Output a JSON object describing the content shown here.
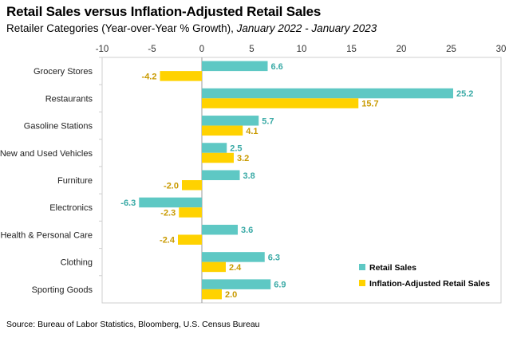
{
  "chart_data": {
    "type": "bar",
    "orientation": "horizontal",
    "title": "Retail Sales versus Inflation-Adjusted Retail Sales",
    "subtitle_main": "Retailer Categories (Year-over-Year % Growth), ",
    "subtitle_period": "January 2022 - January 2023",
    "categories": [
      "Grocery Stores",
      "Restaurants",
      "Gasoline Stations",
      "New and Used Vehicles",
      "Furniture",
      "Electronics",
      "Health & Personal Care",
      "Clothing",
      "Sporting Goods"
    ],
    "series": [
      {
        "name": "Retail Sales",
        "color": "#5ec8c4",
        "label_color": "#3aaaa6",
        "values": [
          6.6,
          25.2,
          5.7,
          2.5,
          3.8,
          -6.3,
          3.6,
          6.3,
          6.9
        ],
        "labels": [
          "6.6",
          "25.2",
          "5.7",
          "2.5",
          "3.8",
          "-6.3",
          "3.6",
          "6.3",
          "6.9"
        ]
      },
      {
        "name": "Inflation-Adjusted Retail Sales",
        "color": "#ffd200",
        "label_color": "#c99a00",
        "values": [
          -4.2,
          15.7,
          4.1,
          3.2,
          -2.0,
          -2.3,
          -2.4,
          2.4,
          2.0
        ],
        "labels": [
          "-4.2",
          "15.7",
          "4.1",
          "3.2",
          "-2.0",
          "-2.3",
          "-2.4",
          "2.4",
          "2.0"
        ]
      }
    ],
    "xlim": [
      -10,
      30
    ],
    "xticks": [
      -10,
      -5,
      0,
      5,
      10,
      15,
      20,
      25,
      30
    ],
    "xtick_labels": [
      "-10",
      "-5",
      "0",
      "5",
      "10",
      "15",
      "20",
      "25",
      "30"
    ],
    "legend_position": "bottom-right",
    "source": "Source: Bureau of Labor Statistics, Bloomberg, U.S. Census Bureau"
  }
}
